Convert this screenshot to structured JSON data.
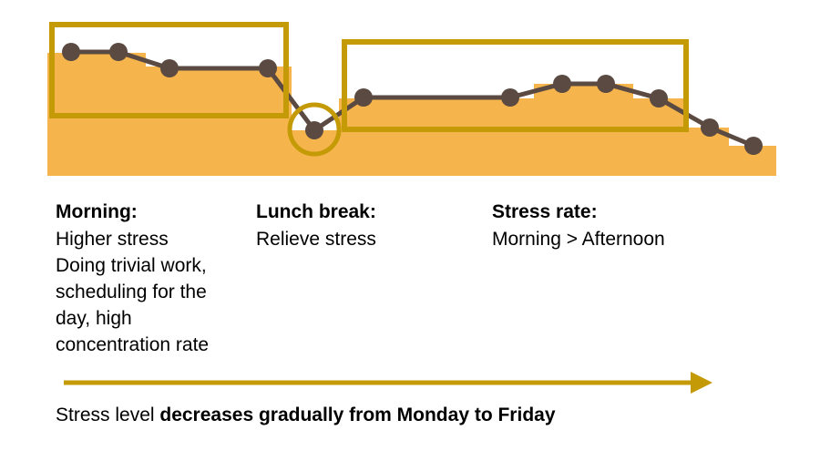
{
  "sections": [
    {
      "heading": "Morning:",
      "lines": [
        "Higher stress",
        "Doing trivial work,",
        "scheduling for the",
        "day, high",
        "concentration rate"
      ]
    },
    {
      "heading": "Lunch break:",
      "lines": [
        "Relieve stress"
      ]
    },
    {
      "heading": "Stress rate:",
      "lines": [
        "Morning > Afternoon"
      ]
    }
  ],
  "footer": {
    "normal": "Stress level ",
    "bold": "decreases gradually from Monday to Friday"
  }
}
